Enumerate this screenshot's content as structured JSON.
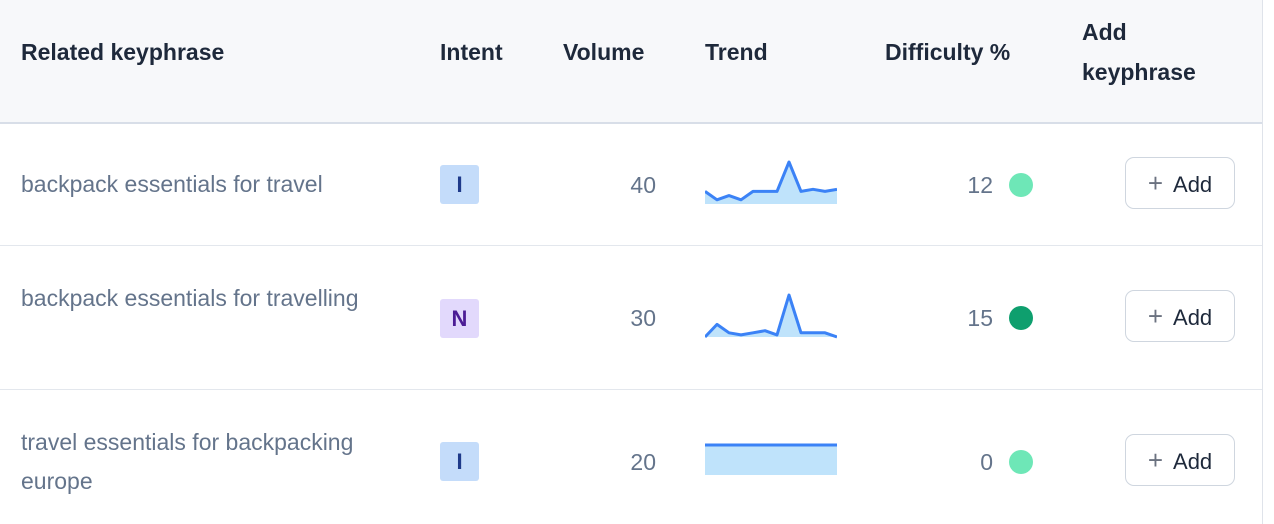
{
  "headers": {
    "keyphrase": "Related keyphrase",
    "intent": "Intent",
    "volume": "Volume",
    "trend": "Trend",
    "difficulty": "Difficulty %",
    "add_line1": "Add",
    "add_line2": "keyphrase"
  },
  "rows": [
    {
      "keyphrase": "backpack essentials for travel",
      "intent": "I",
      "volume": "40",
      "trend": [
        3,
        1,
        2,
        1,
        3,
        3,
        3,
        10,
        3,
        3.5,
        3,
        3.5
      ],
      "difficulty": "12",
      "difficulty_color": "#6ee7b7",
      "add_label": "Add",
      "add_icon": "plus-icon"
    },
    {
      "keyphrase": "backpack essentials for travelling",
      "intent": "N",
      "volume": "30",
      "trend": [
        0,
        3,
        1,
        0.5,
        1,
        1.5,
        0.5,
        10,
        1,
        1,
        1,
        0
      ],
      "difficulty": "15",
      "difficulty_color": "#0e9f6e",
      "add_label": "Add",
      "add_icon": "plus-icon"
    },
    {
      "keyphrase": "travel essentials for backpacking europe",
      "intent": "I",
      "volume": "20",
      "trend": [
        5,
        5,
        5,
        5,
        5,
        5,
        5,
        5,
        5,
        5,
        5,
        5
      ],
      "difficulty": "0",
      "difficulty_color": "#6ee7b7",
      "add_label": "Add",
      "add_icon": "plus-icon"
    }
  ],
  "colors": {
    "trend_line": "#3b82f6",
    "trend_fill": "#bfe3fb"
  }
}
